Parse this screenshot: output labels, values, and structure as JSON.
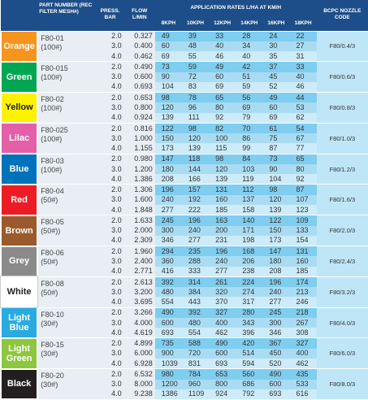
{
  "header": {
    "part_number": "PART NUMBER (REC FILTER MESH#)",
    "press": "PRESS. BAR",
    "flow": "FLOW L/MIN",
    "application_rates": "APPLICATION RATES L/HA AT KM/H",
    "speeds": [
      "8KPH",
      "10KPH",
      "12KPH",
      "14KPH",
      "16KPH",
      "18KPH"
    ],
    "code": "BCPC NOZZLE CODE"
  },
  "rows": [
    {
      "color": "Orange",
      "part": "F80-01",
      "filter": "(100#)",
      "pressures": [
        "2.0",
        "3.0",
        "4.0"
      ],
      "flows": [
        "0.327",
        "0.400",
        "0.462"
      ],
      "rates": [
        [
          "49",
          "39",
          "33",
          "28",
          "24",
          "22"
        ],
        [
          "60",
          "48",
          "40",
          "34",
          "30",
          "27"
        ],
        [
          "69",
          "55",
          "46",
          "40",
          "35",
          "31"
        ]
      ],
      "code": "F80/0.4/3"
    },
    {
      "color": "Green",
      "part": "F80-015",
      "filter": "(100#)",
      "pressures": [
        "2.0",
        "3.0",
        "4.0"
      ],
      "flows": [
        "0.490",
        "0.600",
        "0.693"
      ],
      "rates": [
        [
          "73",
          "59",
          "49",
          "42",
          "37",
          "33"
        ],
        [
          "90",
          "72",
          "60",
          "51",
          "45",
          "40"
        ],
        [
          "104",
          "83",
          "69",
          "59",
          "52",
          "46"
        ]
      ],
      "code": "F80/0.6/3"
    },
    {
      "color": "Yellow",
      "part": "F80-02",
      "filter": "(100#)",
      "pressures": [
        "2.0",
        "3.0",
        "4.0"
      ],
      "flows": [
        "0.653",
        "0.800",
        "0.924"
      ],
      "rates": [
        [
          "98",
          "78",
          "65",
          "56",
          "49",
          "44"
        ],
        [
          "120",
          "96",
          "80",
          "69",
          "60",
          "53"
        ],
        [
          "139",
          "111",
          "92",
          "79",
          "69",
          "62"
        ]
      ],
      "code": "F80/0.8/3"
    },
    {
      "color": "Lilac",
      "part": "F80-025",
      "filter": "(100#)",
      "pressures": [
        "2.0",
        "3.0",
        "4.0"
      ],
      "flows": [
        "0.816",
        "1.000",
        "1.155"
      ],
      "rates": [
        [
          "122",
          "98",
          "82",
          "70",
          "61",
          "54"
        ],
        [
          "150",
          "120",
          "100",
          "86",
          "75",
          "67"
        ],
        [
          "173",
          "139",
          "115",
          "99",
          "87",
          "77"
        ]
      ],
      "code": "F80/1.0/3"
    },
    {
      "color": "Blue",
      "part": "F80-03",
      "filter": "(100#)",
      "pressures": [
        "2.0",
        "3.0",
        "4.0"
      ],
      "flows": [
        "0.980",
        "1.200",
        "1.386"
      ],
      "rates": [
        [
          "147",
          "118",
          "98",
          "84",
          "73",
          "65"
        ],
        [
          "180",
          "144",
          "120",
          "103",
          "90",
          "80"
        ],
        [
          "208",
          "166",
          "139",
          "119",
          "104",
          "92"
        ]
      ],
      "code": "F80/1.2/3"
    },
    {
      "color": "Red",
      "part": "F80-04",
      "filter": "(50#)",
      "pressures": [
        "2.0",
        "3.0",
        "4.0"
      ],
      "flows": [
        "1.306",
        "1.600",
        "1.848"
      ],
      "rates": [
        [
          "196",
          "157",
          "131",
          "112",
          "98",
          "87"
        ],
        [
          "240",
          "192",
          "160",
          "137",
          "120",
          "107"
        ],
        [
          "277",
          "222",
          "185",
          "158",
          "139",
          "123"
        ]
      ],
      "code": "F80/1.6/3"
    },
    {
      "color": "Brown",
      "part": "F80-05",
      "filter": "(50#))",
      "pressures": [
        "2.0",
        "3.0",
        "4.0"
      ],
      "flows": [
        "1.633",
        "2.000",
        "2.309"
      ],
      "rates": [
        [
          "245",
          "196",
          "163",
          "140",
          "122",
          "109"
        ],
        [
          "300",
          "240",
          "200",
          "171",
          "150",
          "133"
        ],
        [
          "346",
          "277",
          "231",
          "198",
          "173",
          "154"
        ]
      ],
      "code": "F80/2.0/3"
    },
    {
      "color": "Grey",
      "part": "F80-06",
      "filter": "(50#)",
      "pressures": [
        "2.0",
        "3.0",
        "4.0"
      ],
      "flows": [
        "1.960",
        "2.400",
        "2.771"
      ],
      "rates": [
        [
          "294",
          "235",
          "196",
          "168",
          "147",
          "131"
        ],
        [
          "360",
          "288",
          "240",
          "206",
          "180",
          "160"
        ],
        [
          "416",
          "333",
          "277",
          "238",
          "208",
          "185"
        ]
      ],
      "code": "F80/2.4/3"
    },
    {
      "color": "White",
      "part": "F80-08",
      "filter": "(50#)",
      "pressures": [
        "2.0",
        "3.0",
        "4.0"
      ],
      "flows": [
        "2.613",
        "3.200",
        "3.695"
      ],
      "rates": [
        [
          "392",
          "314",
          "261",
          "224",
          "196",
          "174"
        ],
        [
          "480",
          "384",
          "320",
          "274",
          "240",
          "213"
        ],
        [
          "554",
          "443",
          "370",
          "317",
          "277",
          "246"
        ]
      ],
      "code": "F80/3.2/3"
    },
    {
      "color": "Light Blue",
      "part": "F80-10",
      "filter": "(30#)",
      "pressures": [
        "2.0",
        "3.0",
        "4.0"
      ],
      "flows": [
        "3.266",
        "4.000",
        "4.619"
      ],
      "rates": [
        [
          "490",
          "392",
          "327",
          "280",
          "245",
          "218"
        ],
        [
          "600",
          "480",
          "400",
          "343",
          "300",
          "267"
        ],
        [
          "693",
          "554",
          "462",
          "396",
          "346",
          "308"
        ]
      ],
      "code": "F80/4.0/3"
    },
    {
      "color": "Light Green",
      "part": "F80-15",
      "filter": "(30#)",
      "pressures": [
        "2.0",
        "3.0",
        "4.0"
      ],
      "flows": [
        "4.899",
        "6.000",
        "6.928"
      ],
      "rates": [
        [
          "735",
          "588",
          "490",
          "420",
          "367",
          "327"
        ],
        [
          "900",
          "720",
          "600",
          "514",
          "450",
          "400"
        ],
        [
          "1039",
          "831",
          "693",
          "594",
          "520",
          "462"
        ]
      ],
      "code": "F80/6.0/3"
    },
    {
      "color": "Black",
      "part": "F80-20",
      "filter": "(30#)",
      "pressures": [
        "2.0",
        "3.0",
        "4.0"
      ],
      "flows": [
        "6.532",
        "8.000",
        "9.238"
      ],
      "rates": [
        [
          "980",
          "784",
          "653",
          "560",
          "490",
          "435"
        ],
        [
          "1200",
          "960",
          "800",
          "686",
          "600",
          "533"
        ],
        [
          "1386",
          "1109",
          "924",
          "792",
          "693",
          "616"
        ]
      ],
      "code": "F80/8.0/3"
    }
  ]
}
